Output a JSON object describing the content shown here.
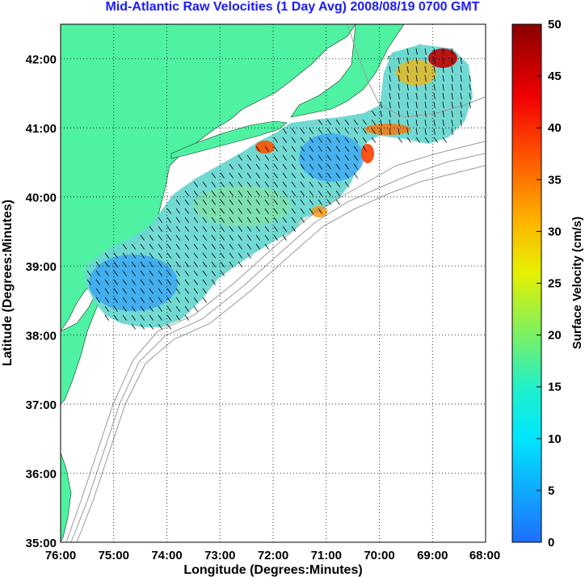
{
  "title": "Mid-Atlantic Raw Velocities (1 Day Avg) 2008/08/19 0700 GMT",
  "map": {
    "xlabel": "Longitude (Degrees:Minutes)",
    "ylabel": "Latitude (Degrees:Minutes)",
    "lon_range": [
      -76,
      -68
    ],
    "lat_range": [
      35,
      42.5
    ],
    "lon_ticks": [
      "76:00",
      "75:00",
      "74:00",
      "73:00",
      "72:00",
      "71:00",
      "70:00",
      "69:00",
      "68:00"
    ],
    "lat_ticks": [
      "35:00",
      "36:00",
      "37:00",
      "38:00",
      "39:00",
      "40:00",
      "41:00",
      "42:00"
    ],
    "land_color": "#4ef2a2",
    "bathy_color": "#9a9a9a",
    "grid": "dotted"
  },
  "colorbar": {
    "label": "Surface Velocity (cm/s)",
    "ticks": [
      "0",
      "5",
      "10",
      "15",
      "20",
      "25",
      "30",
      "35",
      "40",
      "45",
      "50"
    ],
    "range": [
      0,
      50
    ]
  },
  "chart_data": {
    "type": "heatmap",
    "quantity": "Surface Velocity",
    "units": "cm/s",
    "xlim": [
      -76,
      -68
    ],
    "ylim": [
      35,
      42.5
    ],
    "regions": [
      {
        "lon": -74.3,
        "lat": 38.6,
        "speed": 8
      },
      {
        "lon": -73.5,
        "lat": 39.6,
        "speed": 10
      },
      {
        "lon": -72.5,
        "lat": 39.8,
        "speed": 16
      },
      {
        "lon": -71.0,
        "lat": 40.4,
        "speed": 8
      },
      {
        "lon": -72.2,
        "lat": 40.6,
        "speed": 30
      },
      {
        "lon": -70.4,
        "lat": 40.5,
        "speed": 32
      },
      {
        "lon": -69.0,
        "lat": 41.5,
        "speed": 18
      },
      {
        "lon": -68.9,
        "lat": 42.1,
        "speed": 48
      },
      {
        "lon": -69.3,
        "lat": 40.8,
        "speed": 30
      }
    ]
  }
}
